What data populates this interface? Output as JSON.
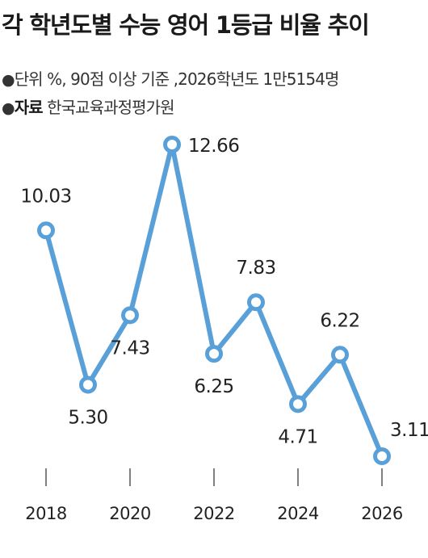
{
  "header": {
    "title": "각 학년도별 수능 영어 1등급 비율 추이",
    "bullet": "●",
    "unit_note": "단위 %, 90점 이상 기준 ,2026학년도 1만5154명",
    "source_label": "자료",
    "source_value": "한국교육과정평가원"
  },
  "chart_data": {
    "type": "line",
    "title": "각 학년도별 수능 영어 1등급 비율 추이",
    "xlabel": "",
    "ylabel": "",
    "x": [
      2018,
      2019,
      2020,
      2021,
      2022,
      2023,
      2024,
      2025,
      2026
    ],
    "values": [
      10.03,
      5.3,
      7.43,
      12.66,
      6.25,
      7.83,
      4.71,
      6.22,
      3.11
    ],
    "value_labels": [
      "10.03",
      "5.30",
      "7.43",
      "12.66",
      "6.25",
      "7.83",
      "4.71",
      "6.22",
      "3.11"
    ],
    "x_tick_labels": [
      "2018",
      "2020",
      "2022",
      "2024",
      "2026"
    ],
    "x_tick_values": [
      2018,
      2020,
      2022,
      2024,
      2026
    ],
    "label_positions": [
      "above",
      "below",
      "below",
      "right",
      "below",
      "above",
      "below",
      "above",
      "above-right"
    ],
    "grid": false,
    "legend": "none",
    "colors": {
      "line": "#5aa0d8",
      "marker_fill": "#ffffff",
      "tick": "#555555"
    }
  }
}
